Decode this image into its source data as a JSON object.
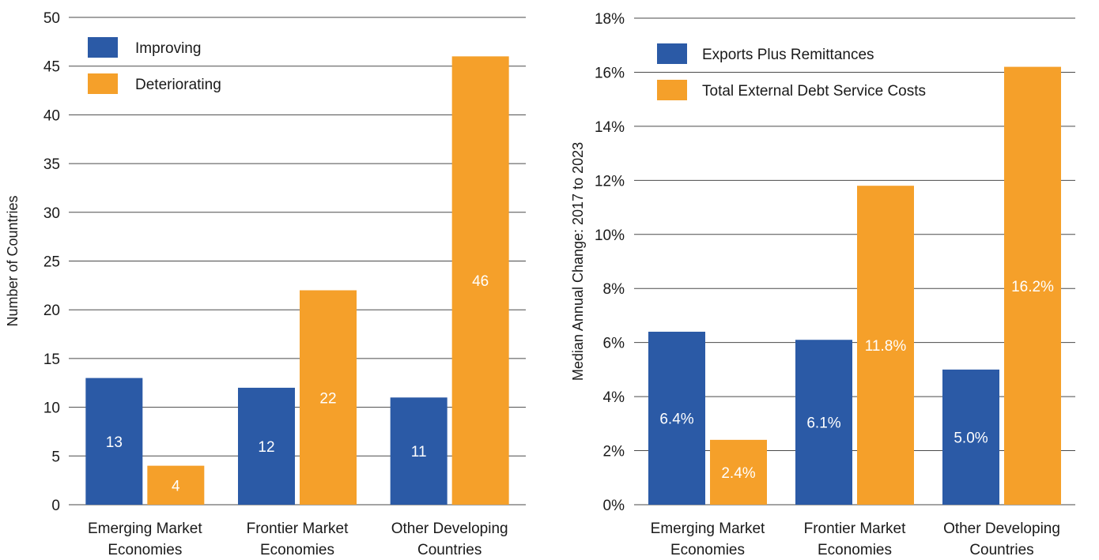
{
  "chart_data": [
    {
      "type": "bar",
      "title": "",
      "xlabel": "",
      "ylabel": "Number of Countries",
      "ylim": [
        0,
        50
      ],
      "yticks": [
        0,
        5,
        10,
        15,
        20,
        25,
        30,
        35,
        40,
        45,
        50
      ],
      "ytick_labels": [
        "0",
        "5",
        "10",
        "15",
        "20",
        "25",
        "30",
        "35",
        "40",
        "45",
        "50"
      ],
      "categories": [
        [
          "Emerging Market",
          "Economies"
        ],
        [
          "Frontier Market",
          "Economies"
        ],
        [
          "Other Developing",
          "Countries"
        ]
      ],
      "series": [
        {
          "name": "Improving",
          "color": "#2b5aa6",
          "values": [
            13,
            12,
            11
          ],
          "labels": [
            "13",
            "12",
            "11"
          ]
        },
        {
          "name": "Deteriorating",
          "color": "#f5a02a",
          "values": [
            4,
            22,
            46
          ],
          "labels": [
            "4",
            "22",
            "46"
          ]
        }
      ],
      "grid": true,
      "legend": "top-left"
    },
    {
      "type": "bar",
      "title": "",
      "xlabel": "",
      "ylabel": "Median Annual Change: 2017 to 2023",
      "ylim": [
        0,
        18
      ],
      "yticks": [
        0,
        2,
        4,
        6,
        8,
        10,
        12,
        14,
        16,
        18
      ],
      "ytick_labels": [
        "0%",
        "2%",
        "4%",
        "6%",
        "8%",
        "10%",
        "12%",
        "14%",
        "16%",
        "18%"
      ],
      "categories": [
        [
          "Emerging Market",
          "Economies"
        ],
        [
          "Frontier Market",
          "Economies"
        ],
        [
          "Other Developing",
          "Countries"
        ]
      ],
      "series": [
        {
          "name": "Exports Plus Remittances",
          "color": "#2b5aa6",
          "values": [
            6.4,
            6.1,
            5.0
          ],
          "labels": [
            "6.4%",
            "6.1%",
            "5.0%"
          ]
        },
        {
          "name": "Total External Debt Service Costs",
          "color": "#f5a02a",
          "values": [
            2.4,
            11.8,
            16.2
          ],
          "labels": [
            "2.4%",
            "11.8%",
            "16.2%"
          ]
        }
      ],
      "grid": true,
      "legend": "top-left"
    }
  ]
}
